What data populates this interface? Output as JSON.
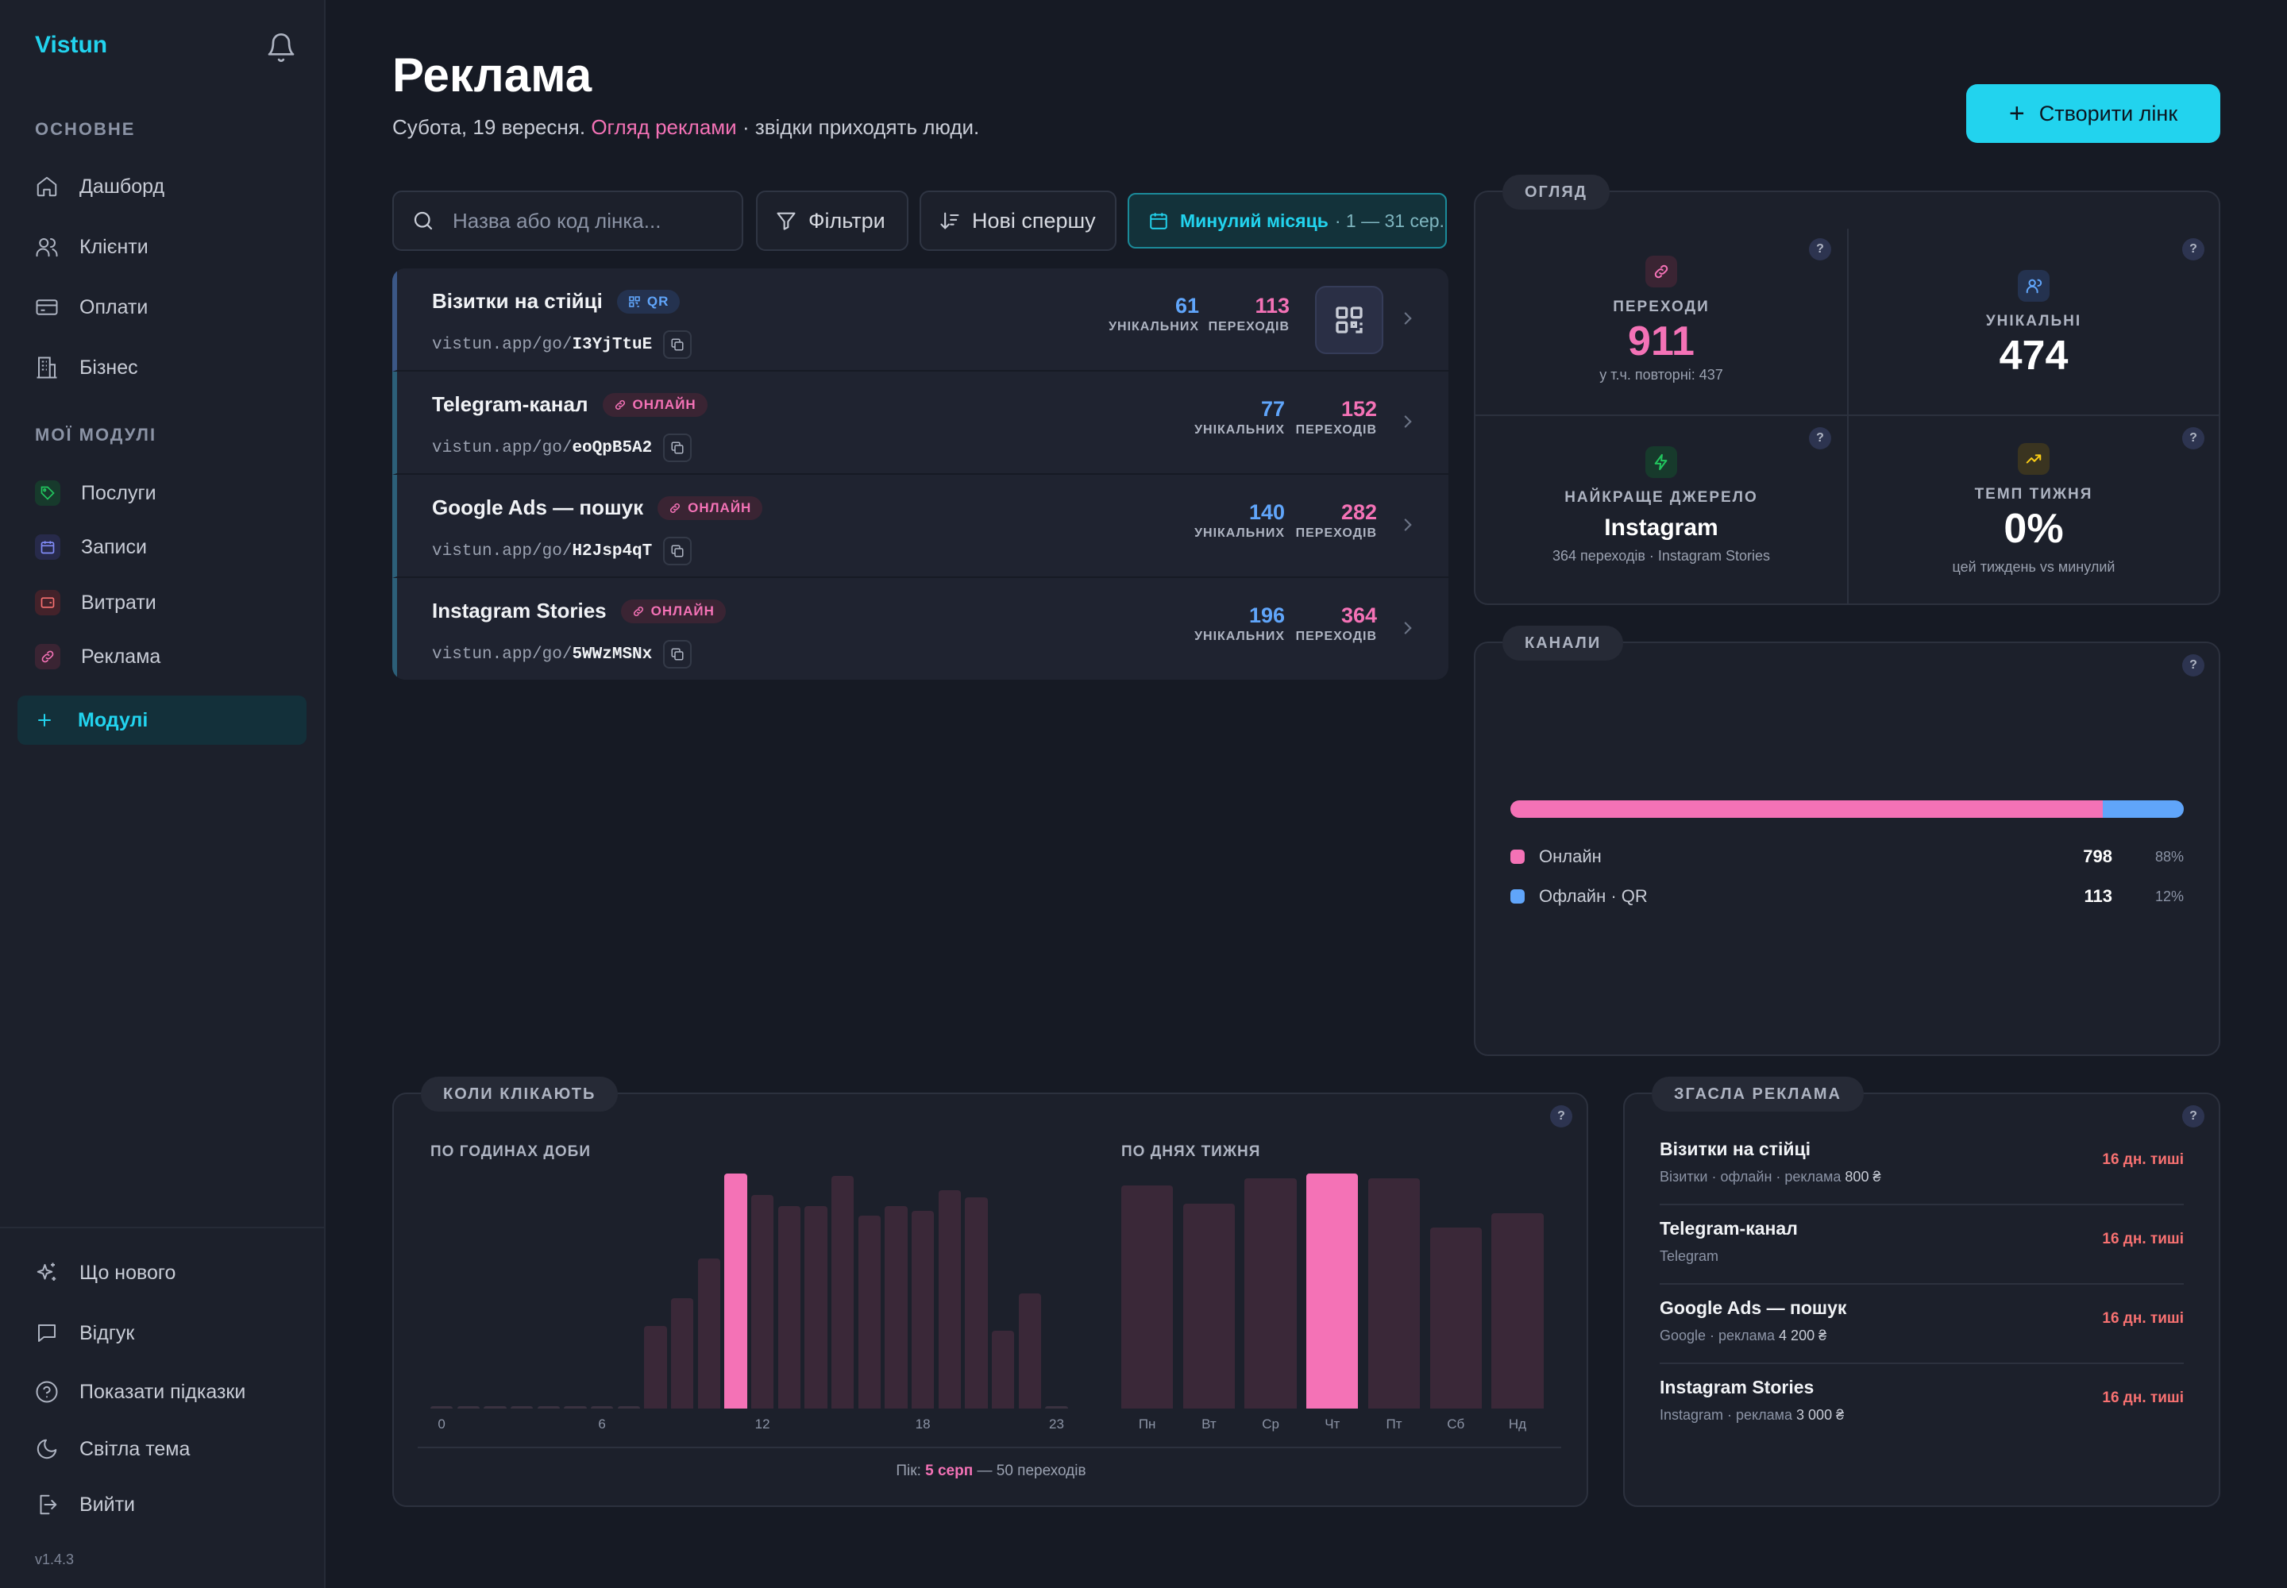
{
  "app": {
    "name": "Vistun",
    "version": "v1.4.3"
  },
  "sidebar": {
    "section_main": "ОСНОВНЕ",
    "main_items": [
      {
        "label": "Дашборд",
        "icon": "home-icon"
      },
      {
        "label": "Клієнти",
        "icon": "users-icon"
      },
      {
        "label": "Оплати",
        "icon": "card-icon"
      },
      {
        "label": "Бізнес",
        "icon": "building-icon"
      }
    ],
    "section_modules": "МОЇ МОДУЛІ",
    "module_items": [
      {
        "label": "Послуги",
        "icon": "tag-icon",
        "color": "#22c55e"
      },
      {
        "label": "Записи",
        "icon": "calendar-icon",
        "color": "#818cf8"
      },
      {
        "label": "Витрати",
        "icon": "wallet-icon",
        "color": "#f87171"
      },
      {
        "label": "Реклама",
        "icon": "link-icon",
        "color": "#f472b6"
      }
    ],
    "add_module": "Модулі",
    "bottom_items": [
      {
        "label": "Що нового",
        "icon": "sparkles-icon"
      },
      {
        "label": "Відгук",
        "icon": "message-icon"
      },
      {
        "label": "Показати підказки",
        "icon": "help-circle-icon"
      },
      {
        "label": "Світла тема",
        "icon": "moon-icon"
      },
      {
        "label": "Вийти",
        "icon": "logout-icon"
      }
    ]
  },
  "header": {
    "title": "Реклама",
    "subtitle_date": "Субота, 19 вересня.",
    "subtitle_highlight": "Огляд реклами",
    "subtitle_rest": " · звідки приходять люди.",
    "create_button": "Створити лінк"
  },
  "toolbar": {
    "search_placeholder": "Назва або код лінка...",
    "filters": "Фільтри",
    "sort": "Нові спершу",
    "date_label": "Минулий місяць",
    "date_range": "· 1 — 31 сер."
  },
  "links": [
    {
      "name": "Візитки на стійці",
      "badge": "QR",
      "badge_type": "qr",
      "url_prefix": "vistun.app/go/",
      "code": "I3YjTtuE",
      "unique": "61",
      "unique_label": "УНІКАЛЬНИХ",
      "clicks": "113",
      "clicks_label": "ПЕРЕХОДІВ",
      "has_qr": true
    },
    {
      "name": "Telegram-канал",
      "badge": "ОНЛАЙН",
      "badge_type": "online",
      "url_prefix": "vistun.app/go/",
      "code": "eoQpB5A2",
      "unique": "77",
      "unique_label": "УНІКАЛЬНИХ",
      "clicks": "152",
      "clicks_label": "ПЕРЕХОДІВ",
      "has_qr": false
    },
    {
      "name": "Google Ads — пошук",
      "badge": "ОНЛАЙН",
      "badge_type": "online",
      "url_prefix": "vistun.app/go/",
      "code": "H2Jsp4qT",
      "unique": "140",
      "unique_label": "УНІКАЛЬНИХ",
      "clicks": "282",
      "clicks_label": "ПЕРЕХОДІВ",
      "has_qr": false
    },
    {
      "name": "Instagram Stories",
      "badge": "ОНЛАЙН",
      "badge_type": "online",
      "url_prefix": "vistun.app/go/",
      "code": "5WWzMSNx",
      "unique": "196",
      "unique_label": "УНІКАЛЬНИХ",
      "clicks": "364",
      "clicks_label": "ПЕРЕХОДІВ",
      "has_qr": false
    }
  ],
  "overview": {
    "tag": "ОГЛЯД",
    "clicks_label": "ПЕРЕХОДИ",
    "clicks_value": "911",
    "clicks_sub": "у т.ч. повторні: 437",
    "unique_label": "УНІКАЛЬНІ",
    "unique_value": "474",
    "best_label": "НАЙКРАЩЕ ДЖЕРЕЛО",
    "best_value": "Instagram",
    "best_sub": "364 переходів · Instagram Stories",
    "pace_label": "ТЕМП ТИЖНЯ",
    "pace_value": "0%",
    "pace_sub": "цей тиждень vs минулий",
    "help": "?"
  },
  "channels": {
    "tag": "КАНАЛИ",
    "items": [
      {
        "label": "Онлайн",
        "value": "798",
        "pct": "88%",
        "share": 0.88,
        "color": "#f472b6"
      },
      {
        "label": "Офлайн · QR",
        "value": "113",
        "pct": "12%",
        "share": 0.12,
        "color": "#60a5fa"
      }
    ]
  },
  "when": {
    "tag": "КОЛИ КЛІКАЮТЬ",
    "hours_label": "ПО ГОДИНАХ ДОБИ",
    "days_label": "ПО ДНЯХ ТИЖНЯ",
    "peak_prefix": "Пік: ",
    "peak_value": "5 серп",
    "peak_suffix": " — 50 переходів"
  },
  "chart_data": [
    {
      "type": "bar",
      "title": "ПО ГОДИНАХ ДОБИ",
      "categories": [
        "0",
        "1",
        "2",
        "3",
        "4",
        "5",
        "6",
        "7",
        "8",
        "9",
        "10",
        "11",
        "12",
        "13",
        "14",
        "15",
        "16",
        "17",
        "18",
        "19",
        "20",
        "21",
        "22",
        "23"
      ],
      "tick_labels": [
        "0",
        "6",
        "12",
        "18",
        "23"
      ],
      "values": [
        0,
        0,
        0,
        0,
        0,
        0,
        0,
        0,
        35,
        47,
        64,
        100,
        91,
        86,
        86,
        99,
        82,
        86,
        84,
        93,
        90,
        33,
        49,
        0
      ],
      "highlight_index": 11,
      "ylim": [
        0,
        100
      ]
    },
    {
      "type": "bar",
      "title": "ПО ДНЯХ ТИЖНЯ",
      "categories": [
        "Пн",
        "Вт",
        "Ср",
        "Чт",
        "Пт",
        "Сб",
        "Нд"
      ],
      "values": [
        95,
        87,
        98,
        100,
        98,
        77,
        83
      ],
      "highlight_index": 3,
      "ylim": [
        0,
        100
      ]
    }
  ],
  "expired": {
    "tag": "ЗГАСЛА РЕКЛАМА",
    "items": [
      {
        "name": "Візитки на стійці",
        "meta": "Візитки · офлайн · реклама ",
        "amount": "800 ₴",
        "status": "16 дн. тиші"
      },
      {
        "name": "Telegram-канал",
        "meta": "Telegram",
        "amount": "",
        "status": "16 дн. тиші"
      },
      {
        "name": "Google Ads — пошук",
        "meta": "Google · реклама ",
        "amount": "4 200 ₴",
        "status": "16 дн. тиші"
      },
      {
        "name": "Instagram Stories",
        "meta": "Instagram · реклама ",
        "amount": "3 000 ₴",
        "status": "16 дн. тиші"
      }
    ]
  },
  "colors": {
    "accent": "#22d3ee",
    "pink": "#f472b6",
    "blue": "#60a5fa",
    "bg": "#161a24"
  }
}
